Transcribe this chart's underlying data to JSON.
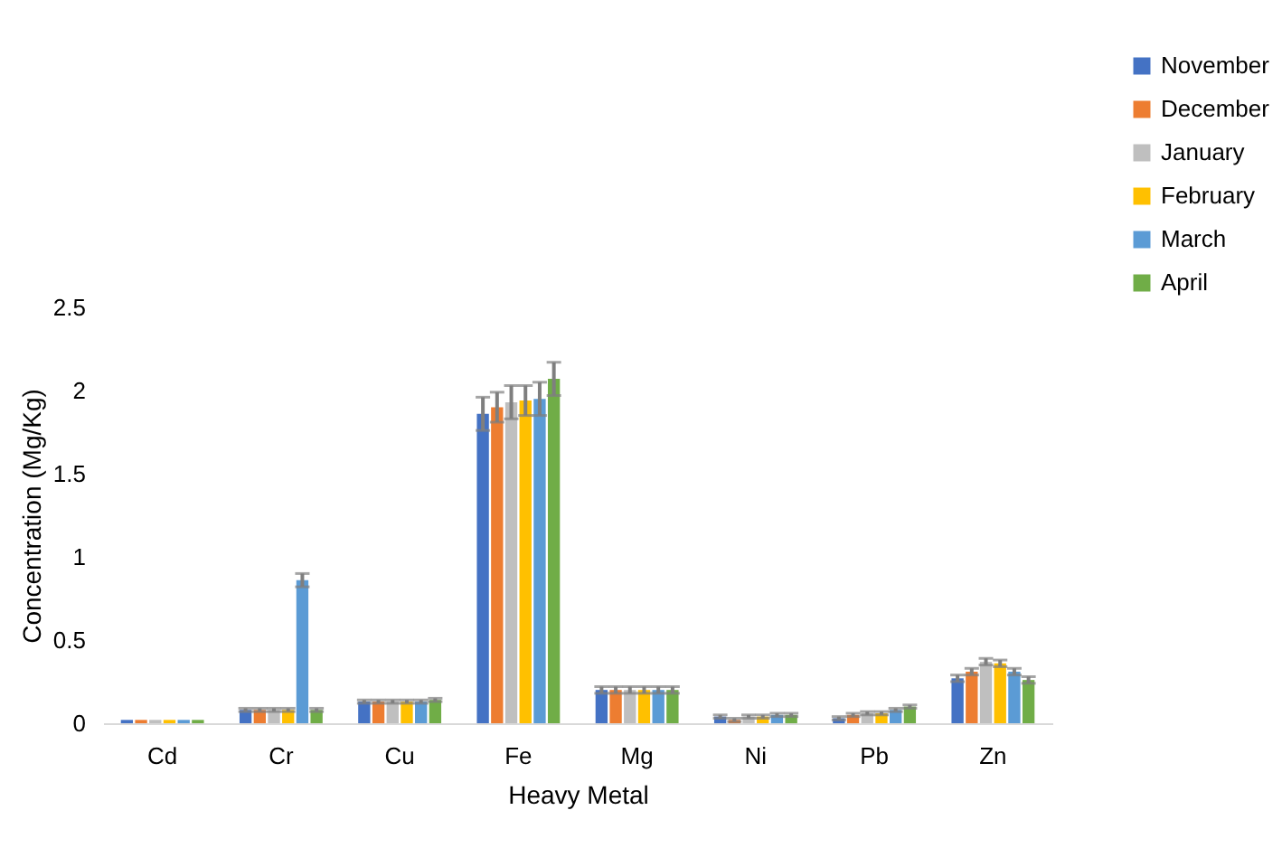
{
  "chart_data": {
    "type": "bar",
    "xlabel": "Heavy Metal",
    "ylabel": "Concentration (Mg/Kg)",
    "categories": [
      "Cd",
      "Cr",
      "Cu",
      "Fe",
      "Mg",
      "Ni",
      "Pb",
      "Zn"
    ],
    "series": [
      {
        "name": "November",
        "color": "#4472c4",
        "values": [
          0.02,
          0.08,
          0.13,
          1.86,
          0.2,
          0.04,
          0.03,
          0.27
        ],
        "errors": [
          null,
          0.01,
          0.01,
          0.1,
          0.02,
          0.01,
          0.01,
          0.02
        ]
      },
      {
        "name": "December",
        "color": "#ed7d31",
        "values": [
          0.02,
          0.08,
          0.13,
          1.9,
          0.2,
          0.02,
          0.05,
          0.31
        ],
        "errors": [
          null,
          0.01,
          0.01,
          0.09,
          0.02,
          0.01,
          0.01,
          0.02
        ]
      },
      {
        "name": "January",
        "color": "#bfbfbf",
        "values": [
          0.02,
          0.08,
          0.13,
          1.93,
          0.2,
          0.04,
          0.06,
          0.37
        ],
        "errors": [
          null,
          0.01,
          0.01,
          0.1,
          0.02,
          0.01,
          0.01,
          0.02
        ]
      },
      {
        "name": "February",
        "color": "#ffc000",
        "values": [
          0.02,
          0.08,
          0.13,
          1.94,
          0.2,
          0.04,
          0.06,
          0.36
        ],
        "errors": [
          null,
          0.01,
          0.01,
          0.09,
          0.02,
          0.01,
          0.01,
          0.02
        ]
      },
      {
        "name": "March",
        "color": "#5b9bd5",
        "values": [
          0.02,
          0.86,
          0.13,
          1.95,
          0.2,
          0.05,
          0.08,
          0.31
        ],
        "errors": [
          null,
          0.04,
          0.01,
          0.1,
          0.02,
          0.01,
          0.01,
          0.02
        ]
      },
      {
        "name": "April",
        "color": "#70ad47",
        "values": [
          0.02,
          0.08,
          0.14,
          2.07,
          0.2,
          0.05,
          0.1,
          0.26
        ],
        "errors": [
          null,
          0.01,
          0.01,
          0.1,
          0.02,
          0.01,
          0.01,
          0.02
        ]
      }
    ],
    "ylim": [
      0,
      2.5
    ],
    "yticks": [
      0,
      0.5,
      1,
      1.5,
      2,
      2.5
    ],
    "grid": false,
    "legend": "top right"
  }
}
